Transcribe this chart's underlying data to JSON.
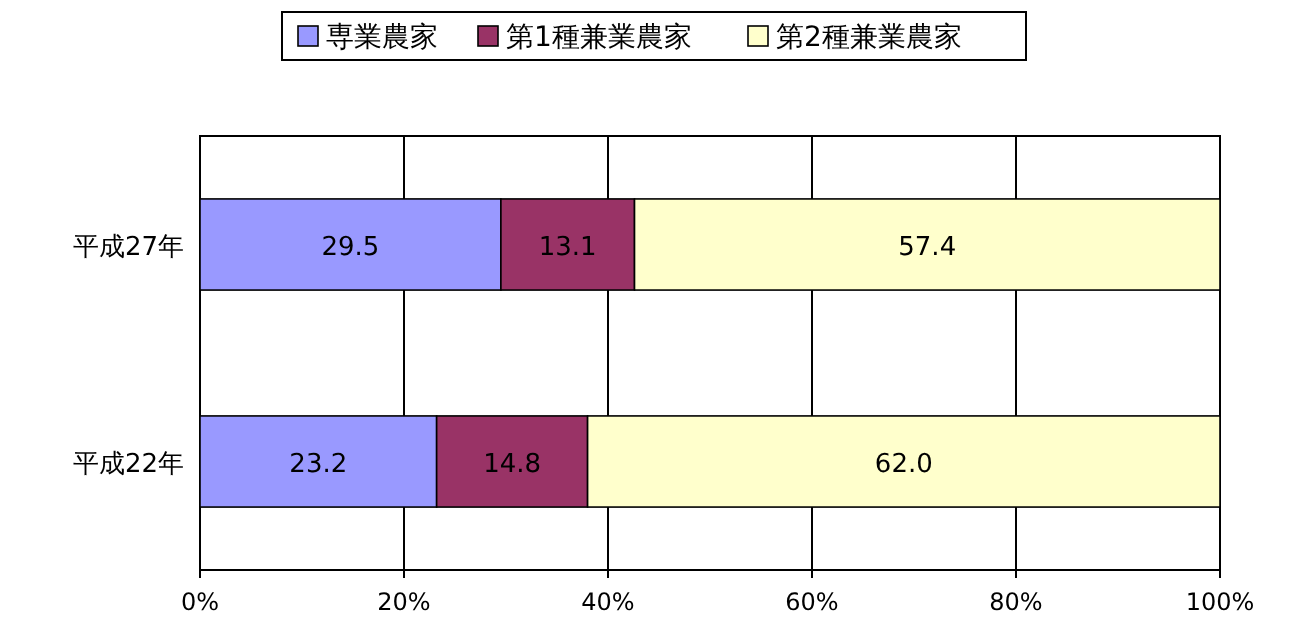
{
  "chart_data": {
    "type": "bar",
    "orientation": "horizontal",
    "stacked": true,
    "categories": [
      "平成27年",
      "平成22年"
    ],
    "series": [
      {
        "name": "専業農家",
        "color": "#9999ff",
        "values": [
          29.5,
          23.2
        ],
        "value_labels": [
          "29.5",
          "23.2"
        ]
      },
      {
        "name": "第1種兼業農家",
        "color": "#993366",
        "values": [
          13.1,
          14.8
        ],
        "value_labels": [
          "13.1",
          "14.8"
        ]
      },
      {
        "name": "第2種兼業農家",
        "color": "#ffffcc",
        "values": [
          57.4,
          62.0
        ],
        "value_labels": [
          "57.4",
          "62.0"
        ]
      }
    ],
    "xlim": [
      0,
      100
    ],
    "xticks": [
      {
        "value": 0,
        "label": "0%"
      },
      {
        "value": 20,
        "label": "20%"
      },
      {
        "value": 40,
        "label": "40%"
      },
      {
        "value": 60,
        "label": "60%"
      },
      {
        "value": 80,
        "label": "80%"
      },
      {
        "value": 100,
        "label": "100%"
      }
    ],
    "grid": "x",
    "legend": "top"
  }
}
